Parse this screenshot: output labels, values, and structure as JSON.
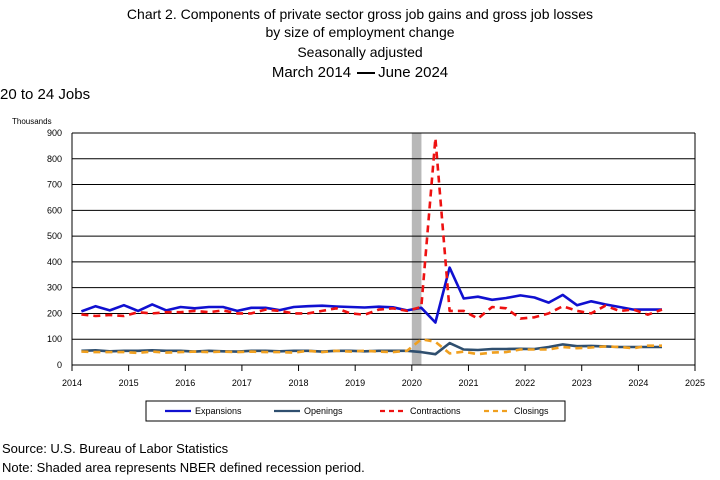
{
  "header": {
    "line1": "Chart 2. Components of private sector gross job gains and gross job losses",
    "line2": "by size of employment change",
    "line3": "Seasonally adjusted",
    "line4_start": "March 2014",
    "line4_end": "June 2024"
  },
  "panel_label": "20 to 24 Jobs",
  "footer": {
    "source": "Source: U.S. Bureau of Labor Statistics",
    "note": "Note: Shaded area represents NBER defined recession period."
  },
  "colors": {
    "expansions": "#1010d0",
    "openings": "#2f4f6f",
    "contractions": "#ee1111",
    "closings": "#f0a020",
    "recession": "#b8b8b8",
    "grid": "#000000"
  },
  "chart_data": {
    "type": "line",
    "ylabel": "Thousands",
    "ylim": [
      0,
      900
    ],
    "yticks": [
      0,
      100,
      200,
      300,
      400,
      500,
      600,
      700,
      800,
      900
    ],
    "xlim": [
      2014,
      2025
    ],
    "xticks": [
      "2014",
      "2015",
      "2016",
      "2017",
      "2018",
      "2019",
      "2020",
      "2021",
      "2022",
      "2023",
      "2024",
      "2025"
    ],
    "grid": true,
    "legend_position": "bottom",
    "recession": {
      "start": 2020.0,
      "end": 2020.17
    },
    "x": [
      "2014-03",
      "2014-06",
      "2014-09",
      "2014-12",
      "2015-03",
      "2015-06",
      "2015-09",
      "2015-12",
      "2016-03",
      "2016-06",
      "2016-09",
      "2016-12",
      "2017-03",
      "2017-06",
      "2017-09",
      "2017-12",
      "2018-03",
      "2018-06",
      "2018-09",
      "2018-12",
      "2019-03",
      "2019-06",
      "2019-09",
      "2019-12",
      "2020-03",
      "2020-06",
      "2020-09",
      "2020-12",
      "2021-03",
      "2021-06",
      "2021-09",
      "2021-12",
      "2022-03",
      "2022-06",
      "2022-09",
      "2022-12",
      "2023-03",
      "2023-06",
      "2023-09",
      "2023-12",
      "2024-03",
      "2024-06"
    ],
    "series": [
      {
        "name": "Expansions",
        "style": "solid",
        "values": [
          208,
          228,
          212,
          232,
          210,
          235,
          212,
          225,
          220,
          225,
          225,
          210,
          222,
          222,
          213,
          225,
          228,
          230,
          227,
          225,
          223,
          226,
          224,
          212,
          222,
          165,
          378,
          258,
          265,
          253,
          260,
          270,
          262,
          242,
          272,
          232,
          247,
          235,
          225,
          215,
          215,
          215
        ]
      },
      {
        "name": "Openings",
        "style": "solid",
        "values": [
          55,
          57,
          53,
          55,
          55,
          57,
          55,
          55,
          52,
          55,
          53,
          52,
          55,
          55,
          53,
          55,
          55,
          52,
          55,
          55,
          53,
          55,
          55,
          55,
          50,
          42,
          85,
          60,
          58,
          62,
          62,
          63,
          62,
          70,
          80,
          73,
          74,
          72,
          70,
          70,
          70,
          70
        ]
      },
      {
        "name": "Contractions",
        "style": "dashed",
        "values": [
          196,
          190,
          194,
          190,
          205,
          200,
          205,
          205,
          210,
          205,
          212,
          200,
          200,
          215,
          210,
          200,
          200,
          210,
          220,
          200,
          195,
          215,
          220,
          210,
          225,
          880,
          210,
          210,
          180,
          225,
          220,
          180,
          185,
          200,
          228,
          210,
          200,
          230,
          210,
          215,
          195,
          215
        ]
      },
      {
        "name": "Closings",
        "style": "dashed",
        "values": [
          52,
          50,
          50,
          50,
          47,
          52,
          48,
          50,
          52,
          50,
          52,
          50,
          52,
          50,
          50,
          48,
          55,
          50,
          55,
          52,
          55,
          52,
          50,
          55,
          100,
          90,
          45,
          52,
          42,
          48,
          50,
          60,
          60,
          60,
          70,
          65,
          68,
          72,
          70,
          65,
          75,
          75
        ]
      }
    ]
  }
}
